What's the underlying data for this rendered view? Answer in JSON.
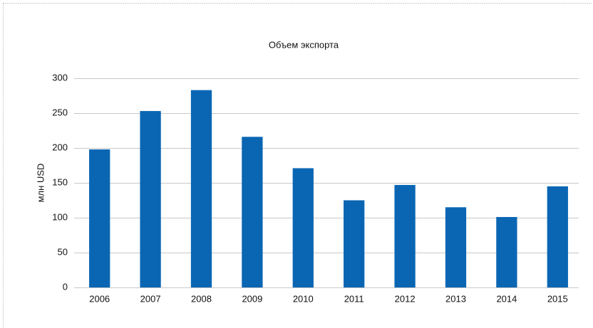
{
  "chart_data": {
    "type": "bar",
    "title": "Объем экспорта",
    "y_label": "млн USD",
    "categories": [
      "2006",
      "2007",
      "2008",
      "2009",
      "2010",
      "2011",
      "2012",
      "2013",
      "2014",
      "2015"
    ],
    "values": [
      198,
      253,
      283,
      216,
      171,
      125,
      147,
      115,
      101,
      145
    ],
    "color": "#0a66b3",
    "ylim": [
      0,
      300
    ],
    "yticks": [
      0,
      50,
      100,
      150,
      200,
      250,
      300
    ],
    "grid": true
  }
}
